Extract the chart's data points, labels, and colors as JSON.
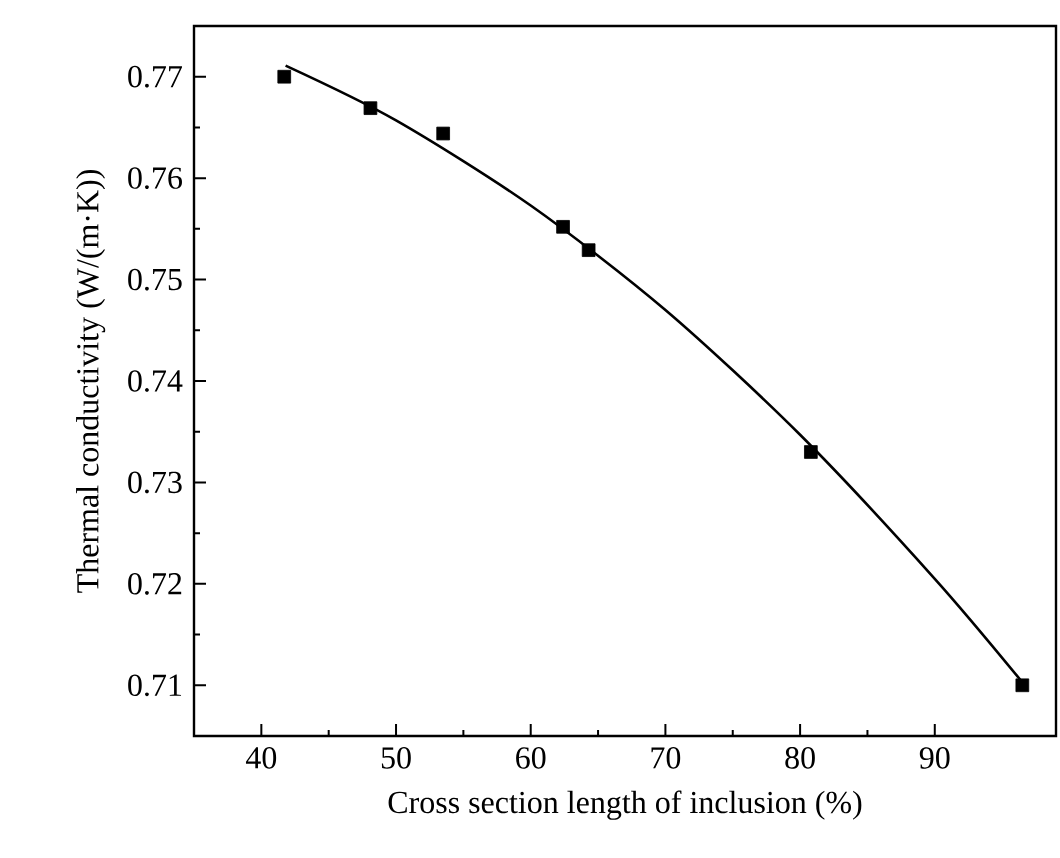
{
  "chart_data": {
    "type": "scatter",
    "xlabel": "Cross section length of inclusion (%)",
    "ylabel": "Thermal conductivity (W/(m·K))",
    "xlim": [
      35,
      99
    ],
    "ylim": [
      0.705,
      0.775
    ],
    "xticks": [
      40,
      50,
      60,
      70,
      80,
      90
    ],
    "yticks": [
      0.71,
      0.72,
      0.73,
      0.74,
      0.75,
      0.76,
      0.77
    ],
    "series": [
      {
        "marker": "square",
        "color": "#000000",
        "x": [
          41.7,
          48.1,
          53.5,
          62.4,
          64.3,
          80.8,
          96.5
        ],
        "values": [
          0.77,
          0.7669,
          0.7644,
          0.7552,
          0.7529,
          0.733,
          0.71
        ]
      },
      {
        "type": "line",
        "marker": "none",
        "color": "#000000",
        "x": [
          41.8,
          50,
          60,
          70,
          80,
          90,
          96.5
        ],
        "values": [
          0.7711,
          0.7657,
          0.7573,
          0.747,
          0.7347,
          0.7205,
          0.7103
        ]
      }
    ]
  }
}
